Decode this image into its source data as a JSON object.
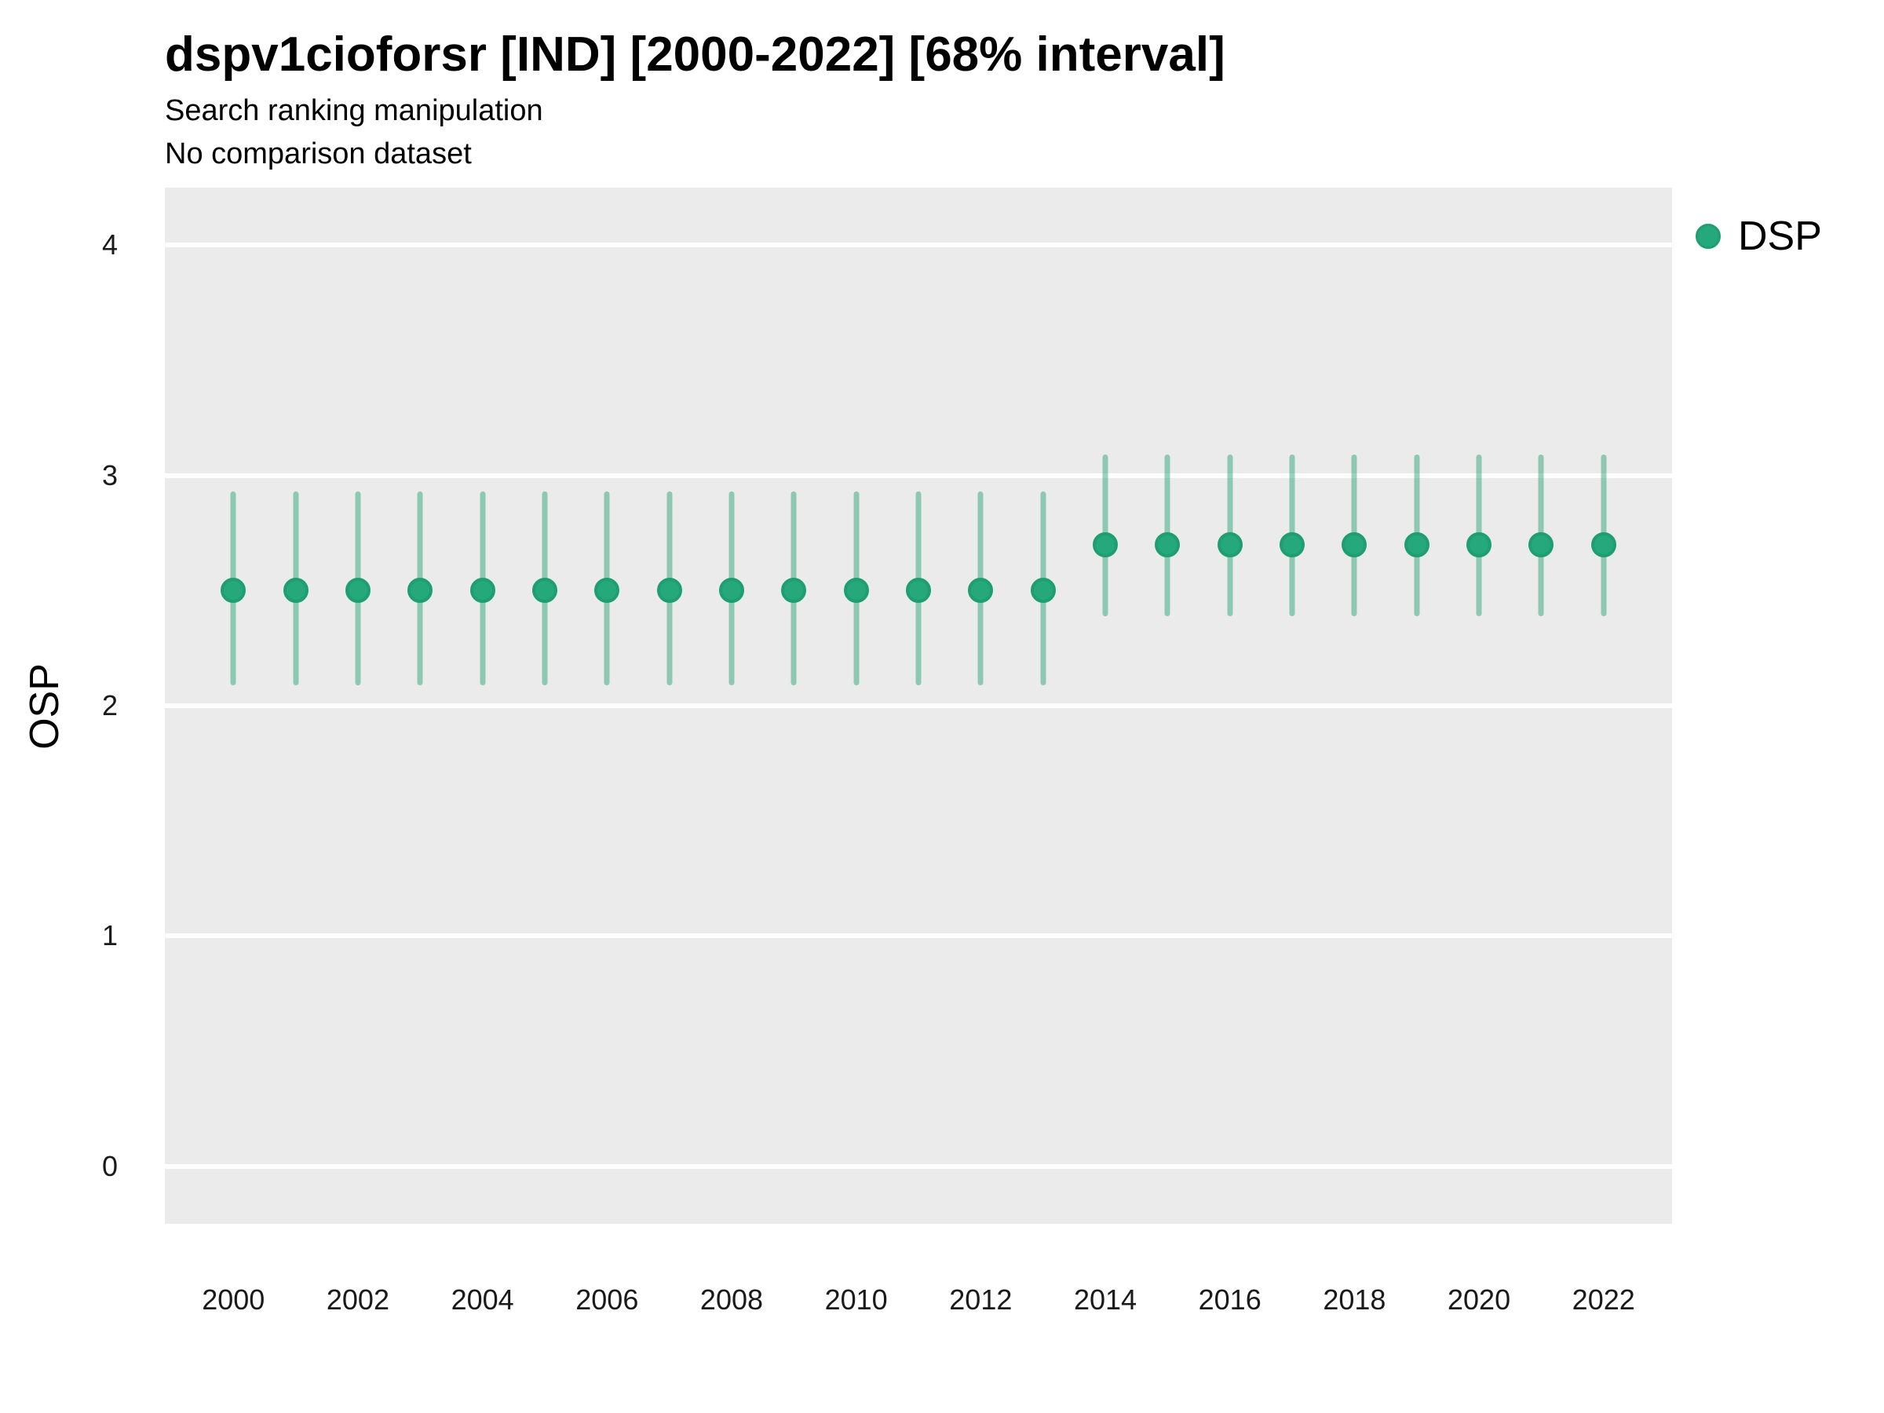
{
  "chart_data": {
    "type": "scatter",
    "subtype": "pointrange",
    "title": "dspv1cioforsr [IND] [2000-2022] [68% interval]",
    "subtitle": "Search ranking manipulation",
    "note": "No comparison dataset",
    "xlabel": "",
    "ylabel": "OSP",
    "ylim": [
      0,
      4
    ],
    "yticks": [
      0,
      1,
      2,
      3,
      4
    ],
    "xticks": [
      2000,
      2002,
      2004,
      2006,
      2008,
      2010,
      2012,
      2014,
      2016,
      2018,
      2020,
      2022
    ],
    "grid": "horizontal-major-only",
    "legend_position": "right",
    "interval_label": "68% interval",
    "series": [
      {
        "name": "DSP",
        "color": "#25a87c",
        "points": [
          {
            "year": 2000,
            "value": 2.5,
            "lo": 2.09,
            "hi": 2.93
          },
          {
            "year": 2001,
            "value": 2.5,
            "lo": 2.09,
            "hi": 2.93
          },
          {
            "year": 2002,
            "value": 2.5,
            "lo": 2.09,
            "hi": 2.93
          },
          {
            "year": 2003,
            "value": 2.5,
            "lo": 2.09,
            "hi": 2.93
          },
          {
            "year": 2004,
            "value": 2.5,
            "lo": 2.09,
            "hi": 2.93
          },
          {
            "year": 2005,
            "value": 2.5,
            "lo": 2.09,
            "hi": 2.93
          },
          {
            "year": 2006,
            "value": 2.5,
            "lo": 2.09,
            "hi": 2.93
          },
          {
            "year": 2007,
            "value": 2.5,
            "lo": 2.09,
            "hi": 2.93
          },
          {
            "year": 2008,
            "value": 2.5,
            "lo": 2.09,
            "hi": 2.93
          },
          {
            "year": 2009,
            "value": 2.5,
            "lo": 2.09,
            "hi": 2.93
          },
          {
            "year": 2010,
            "value": 2.5,
            "lo": 2.09,
            "hi": 2.93
          },
          {
            "year": 2011,
            "value": 2.5,
            "lo": 2.09,
            "hi": 2.93
          },
          {
            "year": 2012,
            "value": 2.5,
            "lo": 2.09,
            "hi": 2.93
          },
          {
            "year": 2013,
            "value": 2.5,
            "lo": 2.09,
            "hi": 2.93
          },
          {
            "year": 2014,
            "value": 2.7,
            "lo": 2.39,
            "hi": 3.09
          },
          {
            "year": 2015,
            "value": 2.7,
            "lo": 2.39,
            "hi": 3.09
          },
          {
            "year": 2016,
            "value": 2.7,
            "lo": 2.39,
            "hi": 3.09
          },
          {
            "year": 2017,
            "value": 2.7,
            "lo": 2.39,
            "hi": 3.09
          },
          {
            "year": 2018,
            "value": 2.7,
            "lo": 2.39,
            "hi": 3.09
          },
          {
            "year": 2019,
            "value": 2.7,
            "lo": 2.39,
            "hi": 3.09
          },
          {
            "year": 2020,
            "value": 2.7,
            "lo": 2.39,
            "hi": 3.09
          },
          {
            "year": 2021,
            "value": 2.7,
            "lo": 2.39,
            "hi": 3.09
          },
          {
            "year": 2022,
            "value": 2.7,
            "lo": 2.39,
            "hi": 3.09
          }
        ]
      }
    ]
  },
  "colors": {
    "point_fill": "#25a87c",
    "point_stroke": "#1e9e71",
    "interval_hex": "#1b9e6e",
    "interval_opacity": 0.45,
    "panel_bg": "#ebebeb",
    "grid": "#ffffff",
    "text": "#000000"
  },
  "legend": {
    "entries": [
      {
        "label": "DSP",
        "marker": "circle-icon",
        "color": "#25a87c"
      }
    ]
  }
}
